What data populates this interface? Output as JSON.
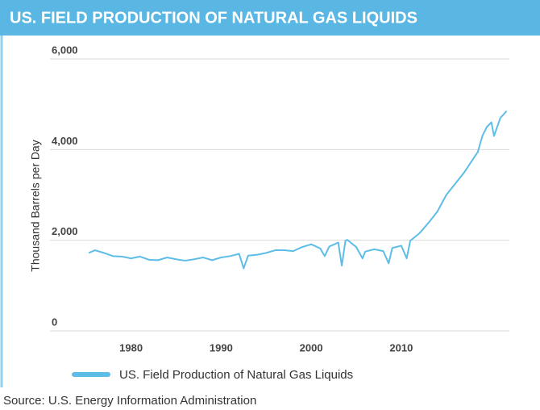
{
  "chart_data": {
    "type": "line",
    "title": "US. FIELD PRODUCTION OF NATURAL GAS LIQUIDS",
    "y_label": "Thousand Barrels per Day",
    "source": "Source: U.S. Energy Information Administration",
    "x": [
      1975.3,
      1976,
      1977,
      1978,
      1979,
      1980,
      1981,
      1982,
      1983,
      1984,
      1985,
      1986,
      1987,
      1988,
      1989,
      1990,
      1991,
      1992,
      1992.5,
      1993,
      1994,
      1995,
      1996,
      1997,
      1998,
      1999,
      2000,
      2001,
      2001.5,
      2002,
      2003,
      2003.4,
      2003.8,
      2004,
      2005,
      2005.7,
      2006,
      2007,
      2008,
      2008.6,
      2009,
      2010,
      2010.6,
      2011,
      2012,
      2013,
      2014,
      2015,
      2016,
      2017,
      2018,
      2018.5,
      2019,
      2019.5,
      2020,
      2020.3,
      2021,
      2021.7
    ],
    "series": [
      {
        "name": "US. Field Production of Natural Gas Liquids",
        "color": "#5ebde6",
        "values": [
          1720,
          1780,
          1720,
          1650,
          1640,
          1600,
          1640,
          1570,
          1560,
          1620,
          1580,
          1550,
          1580,
          1620,
          1560,
          1620,
          1650,
          1700,
          1380,
          1660,
          1680,
          1720,
          1780,
          1780,
          1760,
          1850,
          1910,
          1820,
          1650,
          1860,
          1950,
          1440,
          1990,
          2010,
          1850,
          1600,
          1750,
          1800,
          1760,
          1490,
          1830,
          1880,
          1600,
          1990,
          2150,
          2380,
          2630,
          3000,
          3250,
          3500,
          3800,
          3950,
          4300,
          4500,
          4600,
          4300,
          4700,
          4850
        ]
      }
    ],
    "xlim": [
      1971,
      2022
    ],
    "xticks": [
      1980,
      1990,
      2000,
      2010
    ],
    "ylim": [
      0,
      6000
    ],
    "yticks": [
      0,
      {
        "value": 2000,
        "label": "2,000"
      },
      {
        "value": 4000,
        "label": "4,000"
      },
      {
        "value": 6000,
        "label": "6,000"
      }
    ],
    "grid": true
  }
}
